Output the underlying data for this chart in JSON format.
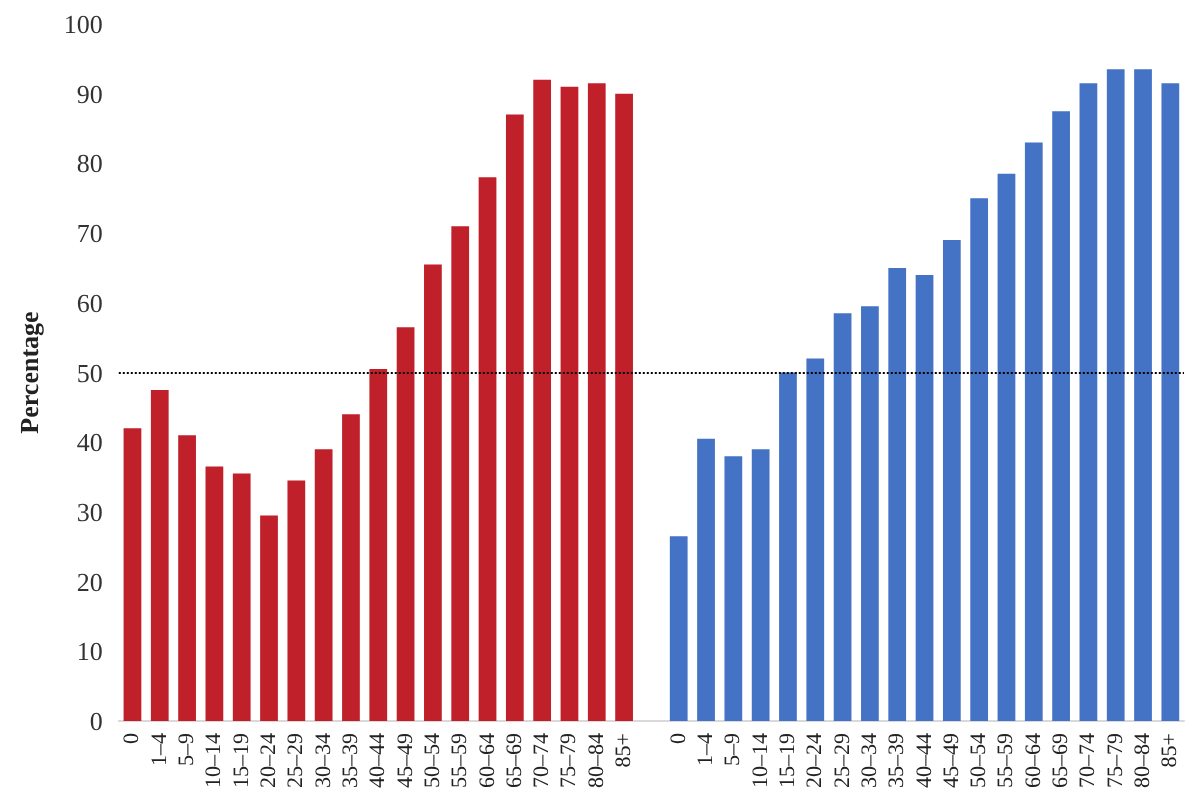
{
  "chart_data": {
    "type": "bar",
    "ylabel": "Percentage",
    "categories": [
      "0",
      "1–4",
      "5–9",
      "10–14",
      "15–19",
      "20–24",
      "25–29",
      "30–34",
      "35–39",
      "40–44",
      "45–49",
      "50–54",
      "55–59",
      "60–64",
      "65–69",
      "70–74",
      "75–79",
      "80–84",
      "85+",
      null,
      "0",
      "1–4",
      "5–9",
      "10–14",
      "15–19",
      "20–24",
      "25–29",
      "30–34",
      "35–39",
      "40–44",
      "45–49",
      "50–54",
      "55–59",
      "60–64",
      "65–69",
      "70–74",
      "75–79",
      "80–84",
      "85+"
    ],
    "values": [
      42,
      47.5,
      41,
      36.5,
      35.5,
      29.5,
      34.5,
      39,
      44,
      50.5,
      56.5,
      65.5,
      71,
      78,
      87,
      92,
      91,
      91.5,
      90,
      null,
      26.5,
      40.5,
      38,
      39,
      50,
      52,
      58.5,
      59.5,
      65,
      64,
      69,
      75,
      78.5,
      83,
      87.5,
      91.5,
      93.5,
      93.5,
      91.5
    ],
    "colors": [
      "#c0202a",
      "#c0202a",
      "#c0202a",
      "#c0202a",
      "#c0202a",
      "#c0202a",
      "#c0202a",
      "#c0202a",
      "#c0202a",
      "#c0202a",
      "#c0202a",
      "#c0202a",
      "#c0202a",
      "#c0202a",
      "#c0202a",
      "#c0202a",
      "#c0202a",
      "#c0202a",
      "#c0202a",
      null,
      "#4472c4",
      "#4472c4",
      "#4472c4",
      "#4472c4",
      "#4472c4",
      "#4472c4",
      "#4472c4",
      "#4472c4",
      "#4472c4",
      "#4472c4",
      "#4472c4",
      "#4472c4",
      "#4472c4",
      "#4472c4",
      "#4472c4",
      "#4472c4",
      "#4472c4",
      "#4472c4",
      "#4472c4"
    ],
    "ylim": [
      0,
      100
    ],
    "yticks": [
      0,
      10,
      20,
      30,
      40,
      50,
      60,
      70,
      80,
      90,
      100
    ],
    "ref_lines": [
      {
        "axis": "y",
        "value": 50,
        "color": "#000000",
        "line_style": "dotted"
      }
    ],
    "grid": false
  }
}
